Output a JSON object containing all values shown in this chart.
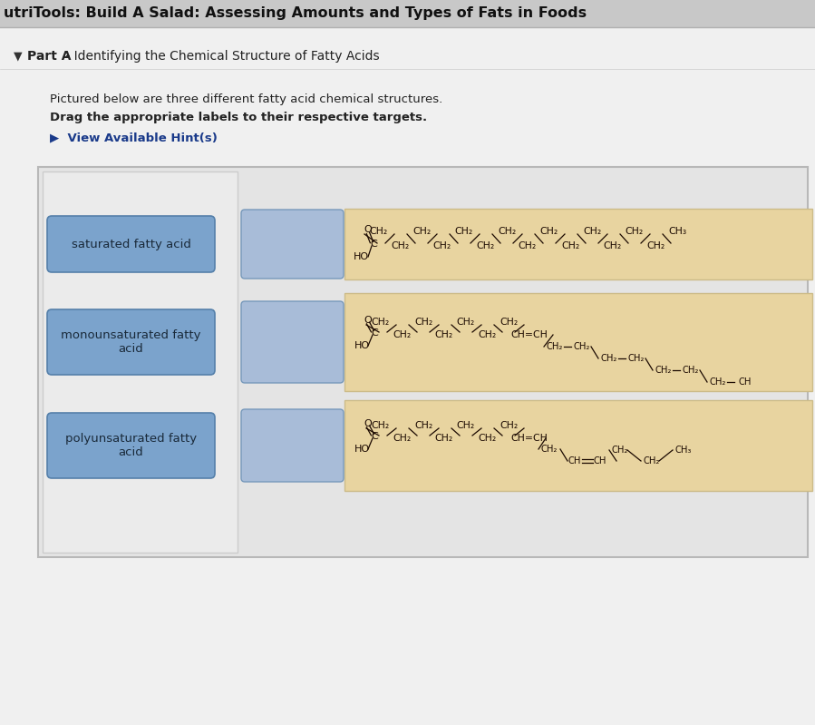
{
  "title": "utriTools: Build A Salad: Assessing Amounts and Types of Fats in Foods",
  "part_a_bold": "Part A",
  "part_a_rest": " - Identifying the Chemical Structure of Fatty Acids",
  "desc1": "Pictured below are three different fatty acid chemical structures.",
  "desc2": "Drag the appropriate labels to their respective targets.",
  "hint": "▶  View Available Hint(s)",
  "labels": [
    "saturated fatty acid",
    "monounsaturated fatty\nacid",
    "polyunsaturated fatty\nacid"
  ],
  "header_bg": "#c8c8c8",
  "page_bg": "#f0f0f0",
  "inner_box_bg": "#e8e8e8",
  "inner_box_edge": "#cccccc",
  "left_col_bg": "#dcdcdc",
  "left_col_edge": "#bbbbbb",
  "panel_bg": "#e8d4a0",
  "panel_edge": "#ccbb88",
  "label_bg": "#7ba3cc",
  "label_edge": "#5580aa",
  "label_text": "#1a2a3a",
  "target_bg": "#a8bcd8",
  "target_edge": "#7799bb",
  "hint_color": "#1a3a8a",
  "chem_color": "#1a0800",
  "title_fs": 11.5
}
